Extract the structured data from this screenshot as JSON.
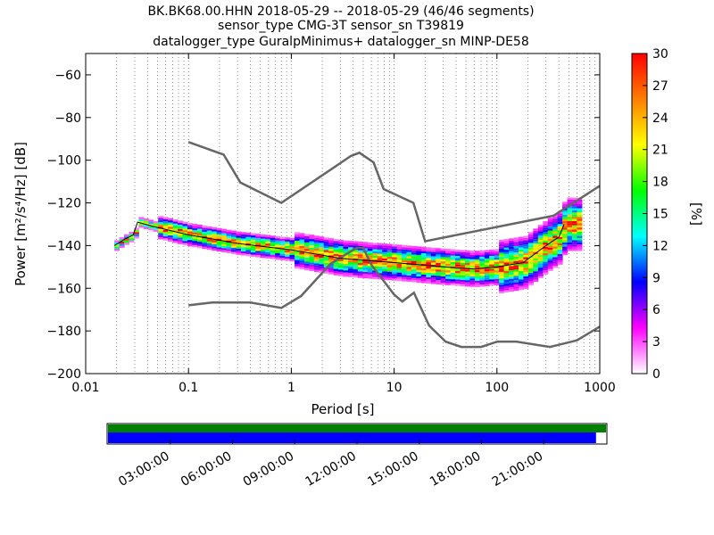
{
  "chart_data": {
    "type": "heatmap",
    "title_lines": [
      "BK.BK68.00.HHN   2018-05-29 -- 2018-05-29  (46/46 segments)",
      "sensor_type CMG-3T sensor_sn T39819",
      "datalogger_type GuralpMinimus+ datalogger_sn MINP-DE58"
    ],
    "xlabel": "Period [s]",
    "ylabel": "Power [m²/s⁴/Hz] [dB]",
    "x_scale": "log",
    "xlim": [
      0.01,
      1000
    ],
    "ylim": [
      -200,
      -50
    ],
    "x_ticks": [
      {
        "value": 0.01,
        "label": "0.01"
      },
      {
        "value": 0.1,
        "label": "0.1"
      },
      {
        "value": 1,
        "label": "1"
      },
      {
        "value": 10,
        "label": "10"
      },
      {
        "value": 100,
        "label": "100"
      },
      {
        "value": 1000,
        "label": "1000"
      }
    ],
    "y_ticks": [
      {
        "value": -60,
        "label": "−60"
      },
      {
        "value": -80,
        "label": "−80"
      },
      {
        "value": -100,
        "label": "−100"
      },
      {
        "value": -120,
        "label": "−120"
      },
      {
        "value": -140,
        "label": "−140"
      },
      {
        "value": -160,
        "label": "−160"
      },
      {
        "value": -180,
        "label": "−180"
      },
      {
        "value": -200,
        "label": "−200"
      }
    ],
    "grid": "dotted vertical lines at log-period subdivisions",
    "colorbar": {
      "label": "[%]",
      "min": 0,
      "max": 30,
      "ticks": [
        {
          "value": 0,
          "label": "0"
        },
        {
          "value": 3,
          "label": "3"
        },
        {
          "value": 6,
          "label": "6"
        },
        {
          "value": 9,
          "label": "9"
        },
        {
          "value": 12,
          "label": "12"
        },
        {
          "value": 15,
          "label": "15"
        },
        {
          "value": 18,
          "label": "18"
        },
        {
          "value": 21,
          "label": "21"
        },
        {
          "value": 24,
          "label": "24"
        },
        {
          "value": 27,
          "label": "27"
        },
        {
          "value": 30,
          "label": "30"
        }
      ],
      "colors": [
        "#ffffff",
        "#ff00ff",
        "#0000ff",
        "#00ffff",
        "#00ff00",
        "#ffff00",
        "#ff7f00",
        "#ff0000"
      ]
    },
    "nhnm": [
      [
        0.1,
        -91.5
      ],
      [
        0.22,
        -97.4
      ],
      [
        0.32,
        -110.5
      ],
      [
        0.8,
        -120.0
      ],
      [
        3.8,
        -98.0
      ],
      [
        4.6,
        -96.5
      ],
      [
        6.3,
        -101.0
      ],
      [
        7.9,
        -113.5
      ],
      [
        15.4,
        -120.0
      ],
      [
        20.0,
        -138.0
      ],
      [
        354.8,
        -126.0
      ],
      [
        1000,
        -112.0
      ]
    ],
    "nlnm": [
      [
        0.1,
        -168.0
      ],
      [
        0.17,
        -166.7
      ],
      [
        0.4,
        -166.7
      ],
      [
        0.8,
        -169.2
      ],
      [
        1.24,
        -163.7
      ],
      [
        2.4,
        -148.6
      ],
      [
        4.3,
        -141.1
      ],
      [
        5.0,
        -141.1
      ],
      [
        6.0,
        -149.0
      ],
      [
        10.0,
        -163.0
      ],
      [
        12.0,
        -166.2
      ],
      [
        15.6,
        -162.1
      ],
      [
        21.9,
        -177.5
      ],
      [
        31.6,
        -185.0
      ],
      [
        45.0,
        -187.5
      ],
      [
        70.0,
        -187.5
      ],
      [
        101.0,
        -185.0
      ],
      [
        154.0,
        -185.0
      ],
      [
        328.0,
        -187.5
      ],
      [
        600.0,
        -184.4
      ],
      [
        1000,
        -178.0
      ]
    ],
    "ppsd_trace": [
      [
        0.019,
        -140.0
      ],
      [
        0.024,
        -137.0
      ],
      [
        0.029,
        -135.0
      ],
      [
        0.032,
        -129.0
      ],
      [
        0.045,
        -131.0
      ],
      [
        0.1,
        -135.0
      ],
      [
        0.3,
        -139.0
      ],
      [
        1.0,
        -142.0
      ],
      [
        3.0,
        -146.0
      ],
      [
        10.0,
        -148.0
      ],
      [
        30.0,
        -150.0
      ],
      [
        60.0,
        -151.0
      ],
      [
        100.0,
        -150.0
      ],
      [
        180.0,
        -148.0
      ],
      [
        300.0,
        -140.0
      ],
      [
        400.0,
        -136.0
      ],
      [
        450.0,
        -130.0
      ]
    ],
    "timeline": {
      "top_color": "#008000",
      "bottom_color": "#0000ff",
      "coverage_fraction": 0.98,
      "tick_labels": [
        "03:00:00",
        "06:00:00",
        "09:00:00",
        "12:00:00",
        "15:00:00",
        "18:00:00",
        "21:00:00"
      ]
    }
  }
}
